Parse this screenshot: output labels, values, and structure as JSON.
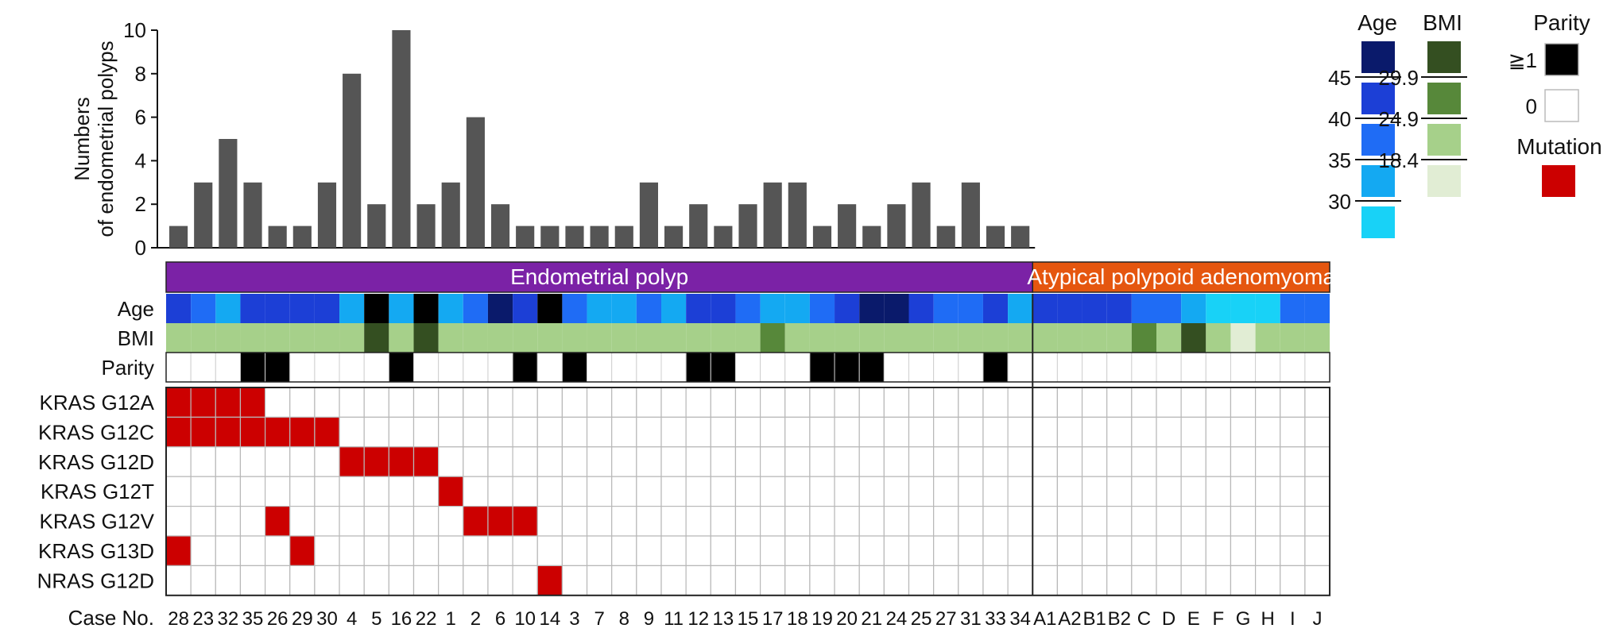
{
  "chart_data": {
    "type": "bar",
    "ylabel": "Numbers of endometrial polyps",
    "ylim": [
      0,
      10
    ],
    "yticks": [
      "0",
      "2",
      "4",
      "6",
      "8",
      "10"
    ],
    "xlabel": "Case No.",
    "cases": [
      "28",
      "23",
      "32",
      "35",
      "26",
      "29",
      "30",
      "4",
      "5",
      "16",
      "22",
      "1",
      "2",
      "6",
      "10",
      "14",
      "3",
      "7",
      "8",
      "9",
      "11",
      "12",
      "13",
      "15",
      "17",
      "18",
      "19",
      "20",
      "21",
      "24",
      "25",
      "27",
      "31",
      "33",
      "34",
      "A1",
      "A2",
      "B1",
      "B2",
      "C",
      "D",
      "E",
      "F",
      "G",
      "H",
      "I",
      "J"
    ],
    "polyp_counts": [
      1,
      3,
      5,
      3,
      1,
      1,
      3,
      8,
      2,
      10,
      2,
      3,
      6,
      2,
      1,
      1,
      1,
      1,
      1,
      3,
      1,
      2,
      1,
      2,
      3,
      3,
      1,
      2,
      1,
      2,
      3,
      1,
      3,
      1,
      1
    ],
    "groups": [
      {
        "label": "Endometrial polyp",
        "count": 35,
        "color": "#7b22a6"
      },
      {
        "label": "Atypical polypoid adenomyoma",
        "count": 12,
        "color": "#e5560f"
      }
    ],
    "clinical_rows": {
      "labels": [
        "Age",
        "BMI",
        "Parity"
      ],
      "age_level": [
        3,
        2,
        1,
        3,
        3,
        3,
        3,
        1,
        5,
        1,
        5,
        1,
        2,
        4,
        3,
        5,
        2,
        1,
        1,
        2,
        1,
        3,
        3,
        2,
        1,
        1,
        2,
        3,
        4,
        4,
        3,
        2,
        2,
        3,
        1,
        3,
        3,
        3,
        3,
        2,
        2,
        1,
        0,
        0,
        0,
        2,
        2
      ],
      "bmi_level": [
        1,
        1,
        1,
        1,
        1,
        1,
        1,
        1,
        3,
        1,
        3,
        1,
        1,
        1,
        1,
        1,
        1,
        1,
        1,
        1,
        1,
        1,
        1,
        1,
        2,
        1,
        1,
        1,
        1,
        1,
        1,
        1,
        1,
        1,
        1,
        1,
        1,
        1,
        1,
        2,
        1,
        3,
        1,
        0,
        1,
        1,
        1
      ],
      "parity": [
        0,
        0,
        0,
        1,
        1,
        0,
        0,
        0,
        0,
        1,
        0,
        0,
        0,
        0,
        1,
        0,
        1,
        0,
        0,
        0,
        0,
        1,
        1,
        0,
        0,
        0,
        1,
        1,
        1,
        0,
        0,
        0,
        0,
        1,
        0,
        0,
        0,
        0,
        0,
        0,
        0,
        0,
        0,
        0,
        0,
        0,
        0
      ]
    },
    "mutations": {
      "genes": [
        "KRAS G12A",
        "KRAS G12C",
        "KRAS G12D",
        "KRAS G12T",
        "KRAS G12V",
        "KRAS G13D",
        "NRAS G12D"
      ],
      "matrix": [
        [
          1,
          1,
          1,
          1,
          0,
          0,
          0,
          0,
          0,
          0,
          0,
          0,
          0,
          0,
          0,
          0,
          0,
          0,
          0,
          0,
          0,
          0,
          0,
          0,
          0,
          0,
          0,
          0,
          0,
          0,
          0,
          0,
          0,
          0,
          0,
          0,
          0,
          0,
          0,
          0,
          0,
          0,
          0,
          0,
          0,
          0,
          0
        ],
        [
          1,
          1,
          1,
          1,
          1,
          1,
          1,
          0,
          0,
          0,
          0,
          0,
          0,
          0,
          0,
          0,
          0,
          0,
          0,
          0,
          0,
          0,
          0,
          0,
          0,
          0,
          0,
          0,
          0,
          0,
          0,
          0,
          0,
          0,
          0,
          0,
          0,
          0,
          0,
          0,
          0,
          0,
          0,
          0,
          0,
          0,
          0
        ],
        [
          0,
          0,
          0,
          0,
          0,
          0,
          0,
          1,
          1,
          1,
          1,
          0,
          0,
          0,
          0,
          0,
          0,
          0,
          0,
          0,
          0,
          0,
          0,
          0,
          0,
          0,
          0,
          0,
          0,
          0,
          0,
          0,
          0,
          0,
          0,
          0,
          0,
          0,
          0,
          0,
          0,
          0,
          0,
          0,
          0,
          0,
          0
        ],
        [
          0,
          0,
          0,
          0,
          0,
          0,
          0,
          0,
          0,
          0,
          0,
          1,
          0,
          0,
          0,
          0,
          0,
          0,
          0,
          0,
          0,
          0,
          0,
          0,
          0,
          0,
          0,
          0,
          0,
          0,
          0,
          0,
          0,
          0,
          0,
          0,
          0,
          0,
          0,
          0,
          0,
          0,
          0,
          0,
          0,
          0,
          0
        ],
        [
          0,
          0,
          0,
          0,
          1,
          0,
          0,
          0,
          0,
          0,
          0,
          0,
          1,
          1,
          1,
          0,
          0,
          0,
          0,
          0,
          0,
          0,
          0,
          0,
          0,
          0,
          0,
          0,
          0,
          0,
          0,
          0,
          0,
          0,
          0,
          0,
          0,
          0,
          0,
          0,
          0,
          0,
          0,
          0,
          0,
          0,
          0
        ],
        [
          1,
          0,
          0,
          0,
          0,
          1,
          0,
          0,
          0,
          0,
          0,
          0,
          0,
          0,
          0,
          0,
          0,
          0,
          0,
          0,
          0,
          0,
          0,
          0,
          0,
          0,
          0,
          0,
          0,
          0,
          0,
          0,
          0,
          0,
          0,
          0,
          0,
          0,
          0,
          0,
          0,
          0,
          0,
          0,
          0,
          0,
          0
        ],
        [
          0,
          0,
          0,
          0,
          0,
          0,
          0,
          0,
          0,
          0,
          0,
          0,
          0,
          0,
          0,
          1,
          0,
          0,
          0,
          0,
          0,
          0,
          0,
          0,
          0,
          0,
          0,
          0,
          0,
          0,
          0,
          0,
          0,
          0,
          0,
          0,
          0,
          0,
          0,
          0,
          0,
          0,
          0,
          0,
          0,
          0,
          0
        ]
      ]
    },
    "legend": {
      "age": {
        "title": "Age",
        "thresholds": [
          "45",
          "40",
          "35",
          "30"
        ],
        "colors": [
          "#0a1a6b",
          "#1c3fd6",
          "#1f6cf5",
          "#14a9f2",
          "#18d2f7"
        ]
      },
      "bmi": {
        "title": "BMI",
        "thresholds": [
          "29.9",
          "24.9",
          "18.4"
        ],
        "colors": [
          "#344f21",
          "#57883a",
          "#a6d08a",
          "#e1edd4"
        ]
      },
      "parity": {
        "title": "Parity",
        "items": [
          {
            "label": "≧1",
            "color": "#000000"
          },
          {
            "label": "0",
            "color": "#ffffff"
          }
        ]
      },
      "mutation": {
        "title": "Mutation",
        "color": "#cc0000"
      }
    },
    "colors": {
      "bar": "#555555",
      "mutation": "#cc0000",
      "grid": "#b8b8b8"
    }
  }
}
